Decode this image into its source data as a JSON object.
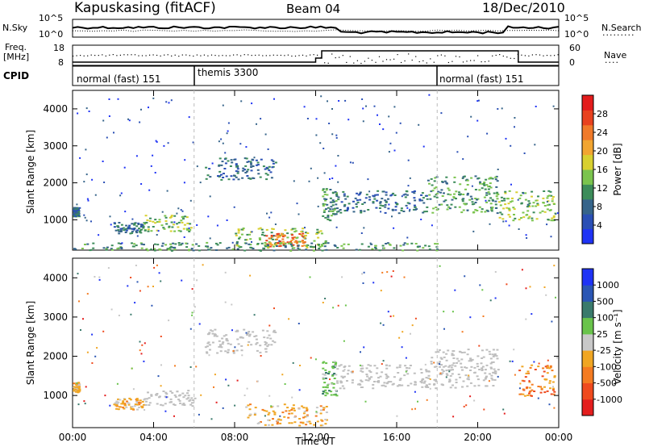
{
  "header": {
    "station": "Kapuskasing (fitACF)",
    "beam": "Beam 04",
    "date": "18/Dec/2010"
  },
  "top_panel": {
    "left_label": "N.Sky",
    "right_label": "N.Search",
    "left_ticks": [
      "10^5",
      "10^0"
    ],
    "right_ticks": [
      "10^5",
      "10^0"
    ]
  },
  "freq_panel": {
    "label_line1": "Freq.",
    "label_line2": "[MHz]",
    "left_ticks": [
      "18",
      "8"
    ],
    "right_ticks": [
      "60",
      "0"
    ],
    "right_label": "Nave"
  },
  "cpid": {
    "label": "CPID",
    "modes": [
      {
        "name": "normal (fast) 151",
        "start_hour": 0
      },
      {
        "name": "themis 3300",
        "start_hour": 6
      },
      {
        "name": "normal (fast) 151",
        "start_hour": 18
      }
    ]
  },
  "colors": {
    "power": [
      "#1f33f5",
      "#2a4fb5",
      "#36648a",
      "#3c8c5a",
      "#7bc44e",
      "#d8d030",
      "#f2a531",
      "#f07a2a",
      "#e8421f",
      "#e31c1c"
    ],
    "velocity": [
      "#1f33f5",
      "#2b56b4",
      "#3a7a6c",
      "#69c34b",
      "#c8c8c8",
      "#f0a623",
      "#f47b21",
      "#ef4a1e",
      "#e41e1e"
    ],
    "ground_scatter": "#bebebe"
  },
  "chart_data": [
    {
      "type": "heatmap",
      "title": "",
      "xlabel": "",
      "ylabel": "Slant Range [km]",
      "xlim": [
        0,
        24
      ],
      "ylim": [
        180,
        4500
      ],
      "x_ticks": [
        "00:00",
        "04:00",
        "08:00",
        "12:00",
        "16:00",
        "20:00",
        "00:00"
      ],
      "y_ticks": [
        1000,
        2000,
        3000,
        4000
      ],
      "colorbar": {
        "label": "Power [dB]",
        "ticks": [
          4,
          8,
          12,
          16,
          20,
          24,
          28
        ]
      },
      "regions": [
        {
          "t": [
            0.0,
            0.3
          ],
          "r": [
            1100,
            1350
          ],
          "level": 2
        },
        {
          "t": [
            2.0,
            3.5
          ],
          "r": [
            650,
            950
          ],
          "level": 2
        },
        {
          "t": [
            3.5,
            6.0
          ],
          "r": [
            700,
            1150
          ],
          "level": 4
        },
        {
          "t": [
            6.5,
            10.0
          ],
          "r": [
            2100,
            2700
          ],
          "level": 2
        },
        {
          "t": [
            8.0,
            12.5
          ],
          "r": [
            250,
            800
          ],
          "level": 4
        },
        {
          "t": [
            9.5,
            11.5
          ],
          "r": [
            300,
            650
          ],
          "level": 7
        },
        {
          "t": [
            12.3,
            13.0
          ],
          "r": [
            1000,
            1900
          ],
          "level": 3
        },
        {
          "t": [
            13.0,
            17.5
          ],
          "r": [
            1200,
            1800
          ],
          "level": 2
        },
        {
          "t": [
            17.5,
            21.0
          ],
          "r": [
            1200,
            2200
          ],
          "level": 3
        },
        {
          "t": [
            21.0,
            23.8
          ],
          "r": [
            1000,
            1800
          ],
          "level": 4
        },
        {
          "t": [
            0.0,
            18.0
          ],
          "r": [
            180,
            400
          ],
          "level": 3
        }
      ]
    },
    {
      "type": "heatmap",
      "title": "",
      "xlabel": "Time UT",
      "ylabel": "Slant Range [km]",
      "xlim": [
        0,
        24
      ],
      "ylim": [
        180,
        4500
      ],
      "x_ticks": [
        "00:00",
        "04:00",
        "08:00",
        "12:00",
        "16:00",
        "20:00",
        "00:00"
      ],
      "y_ticks": [
        1000,
        2000,
        3000,
        4000
      ],
      "colorbar": {
        "label": "Velocity [m s⁻¹]",
        "ticks": [
          1000,
          500,
          100,
          25,
          -25,
          -100,
          -500,
          -1000
        ]
      },
      "regions": [
        {
          "t": [
            0.0,
            0.3
          ],
          "r": [
            1100,
            1350
          ],
          "class": "-100"
        },
        {
          "t": [
            2.0,
            3.5
          ],
          "r": [
            650,
            950
          ],
          "class": "-100"
        },
        {
          "t": [
            3.5,
            6.0
          ],
          "r": [
            750,
            1150
          ],
          "class": "ground"
        },
        {
          "t": [
            6.5,
            10.0
          ],
          "r": [
            2100,
            2700
          ],
          "class": "ground"
        },
        {
          "t": [
            8.5,
            12.5
          ],
          "r": [
            250,
            800
          ],
          "class": "-100"
        },
        {
          "t": [
            12.3,
            13.0
          ],
          "r": [
            1000,
            1900
          ],
          "class": "100"
        },
        {
          "t": [
            13.0,
            17.5
          ],
          "r": [
            1200,
            1800
          ],
          "class": "ground"
        },
        {
          "t": [
            17.5,
            21.0
          ],
          "r": [
            1200,
            2200
          ],
          "class": "ground"
        },
        {
          "t": [
            22.0,
            23.8
          ],
          "r": [
            1000,
            1800
          ],
          "class": "-500"
        }
      ]
    }
  ]
}
